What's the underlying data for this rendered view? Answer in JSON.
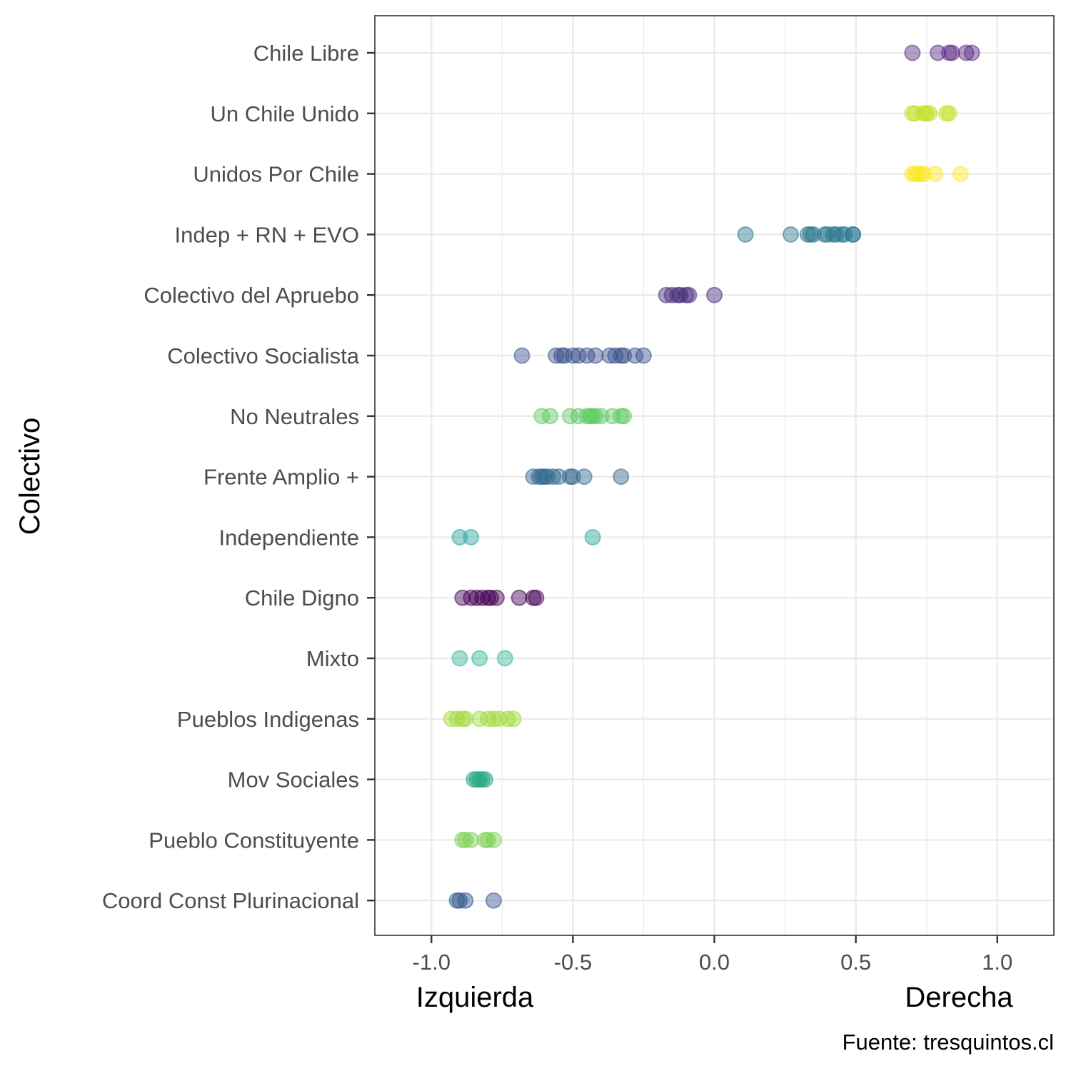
{
  "chart_data": {
    "type": "scatter",
    "title": "",
    "ylabel": "Colectivo",
    "xlabel_left": "Izquierda",
    "xlabel_right": "Derecha",
    "caption": "Fuente: tresquintos.cl",
    "xlim": [
      -1.2,
      1.2
    ],
    "x_ticks": [
      -1.0,
      -0.5,
      0.0,
      0.5,
      1.0
    ],
    "x_tick_labels": [
      "-1.0",
      "-0.5",
      "0.0",
      "0.5",
      "1.0"
    ],
    "grid": true,
    "categories": [
      "Chile Libre",
      "Un Chile Unido",
      "Unidos Por Chile",
      "Indep + RN + EVO",
      "Colectivo del Apruebo",
      "Colectivo Socialista",
      "No Neutrales",
      "Frente Amplio +",
      "Independiente",
      "Chile Digno",
      "Mixto",
      "Pueblos Indigenas",
      "Mov Sociales",
      "Pueblo Constituyente",
      "Coord Const Plurinacional"
    ],
    "series": [
      {
        "category": "Chile Libre",
        "color": "#5b2a86",
        "x": [
          0.7,
          0.79,
          0.83,
          0.84,
          0.89,
          0.91
        ]
      },
      {
        "category": "Un Chile Unido",
        "color": "#c2df23",
        "x": [
          0.7,
          0.71,
          0.74,
          0.75,
          0.76,
          0.82,
          0.83
        ]
      },
      {
        "category": "Unidos Por Chile",
        "color": "#fde725",
        "x": [
          0.7,
          0.71,
          0.72,
          0.73,
          0.74,
          0.78,
          0.87
        ]
      },
      {
        "category": "Indep + RN + EVO",
        "color": "#2a788e",
        "x": [
          0.11,
          0.27,
          0.33,
          0.34,
          0.35,
          0.39,
          0.4,
          0.42,
          0.43,
          0.45,
          0.46,
          0.49,
          0.49
        ]
      },
      {
        "category": "Colectivo del Apruebo",
        "color": "#472d7b",
        "x": [
          -0.17,
          -0.15,
          -0.13,
          -0.12,
          -0.1,
          -0.09,
          0.0
        ]
      },
      {
        "category": "Colectivo Socialista",
        "color": "#3b528b",
        "x": [
          -0.68,
          -0.56,
          -0.54,
          -0.53,
          -0.5,
          -0.48,
          -0.45,
          -0.42,
          -0.37,
          -0.35,
          -0.33,
          -0.32,
          -0.28,
          -0.25
        ]
      },
      {
        "category": "No Neutrales",
        "color": "#5ec962",
        "x": [
          -0.61,
          -0.58,
          -0.51,
          -0.48,
          -0.45,
          -0.44,
          -0.43,
          -0.42,
          -0.4,
          -0.36,
          -0.33,
          -0.32
        ]
      },
      {
        "category": "Frente Amplio +",
        "color": "#31688e",
        "x": [
          -0.64,
          -0.62,
          -0.61,
          -0.6,
          -0.59,
          -0.57,
          -0.55,
          -0.51,
          -0.5,
          -0.46,
          -0.33
        ]
      },
      {
        "category": "Independiente",
        "color": "#29a69b",
        "x": [
          -0.9,
          -0.86,
          -0.43
        ]
      },
      {
        "category": "Chile Digno",
        "color": "#440154",
        "x": [
          -0.89,
          -0.86,
          -0.84,
          -0.82,
          -0.8,
          -0.79,
          -0.77,
          -0.69,
          -0.64,
          -0.63
        ]
      },
      {
        "category": "Mixto",
        "color": "#35b79a",
        "x": [
          -0.9,
          -0.83,
          -0.74
        ]
      },
      {
        "category": "Pueblos Indigenas",
        "color": "#a0da39",
        "x": [
          -0.93,
          -0.91,
          -0.89,
          -0.88,
          -0.83,
          -0.8,
          -0.78,
          -0.76,
          -0.73,
          -0.71
        ]
      },
      {
        "category": "Mov Sociales",
        "color": "#22a884",
        "x": [
          -0.85,
          -0.84,
          -0.83,
          -0.82,
          -0.81
        ]
      },
      {
        "category": "Pueblo Constituyente",
        "color": "#7ad151",
        "x": [
          -0.89,
          -0.88,
          -0.86,
          -0.81,
          -0.8,
          -0.78
        ]
      },
      {
        "category": "Coord Const Plurinacional",
        "color": "#30568c",
        "x": [
          -0.91,
          -0.9,
          -0.88,
          -0.78
        ]
      }
    ]
  }
}
